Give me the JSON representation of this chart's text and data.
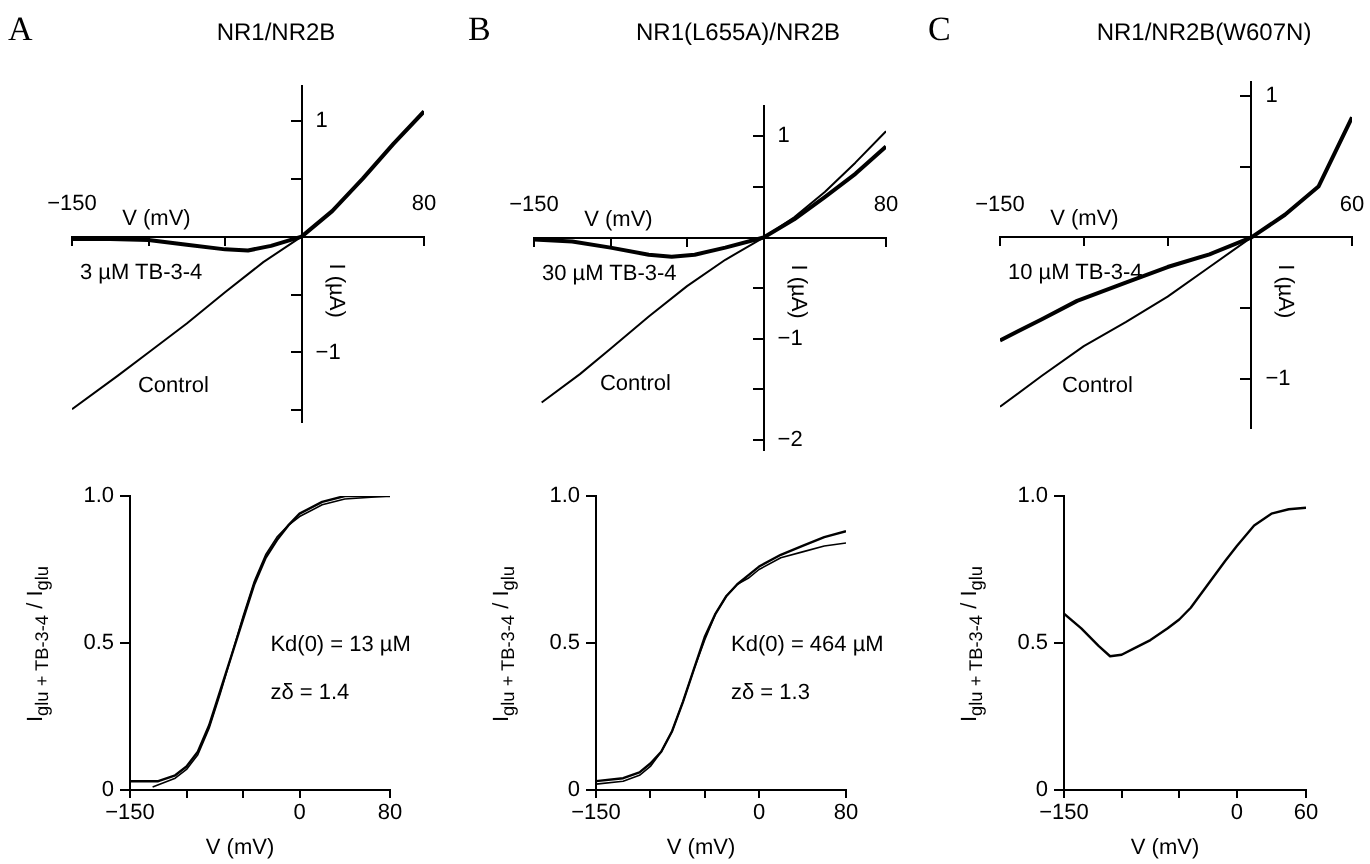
{
  "chart_data": [
    {
      "type": "line",
      "title": "NR1/NR2B",
      "annotations": [
        "A"
      ],
      "xlabel": "V (mV)",
      "ylabel": "I (µA)",
      "xlim": [
        -150,
        80
      ],
      "xticks": [
        {
          "value": -150,
          "label": "−150"
        },
        {
          "value": -100,
          "label": null
        },
        {
          "value": -50,
          "label": null
        },
        80
      ],
      "ylim": [
        -1.6,
        1.3
      ],
      "yticks": [
        {
          "value": -1.5,
          "label": null
        },
        {
          "value": -1,
          "label": "−1"
        },
        {
          "value": -0.5,
          "label": null
        },
        {
          "value": 0.5,
          "label": null
        },
        1
      ],
      "series": [
        {
          "name": "Control",
          "color": "#000000",
          "x": [
            -150,
            -120,
            -100,
            -75,
            -50,
            -25,
            0,
            20,
            40,
            60,
            80
          ],
          "values": [
            -1.49,
            -1.2,
            -1.0,
            -0.75,
            -0.48,
            -0.22,
            0,
            0.22,
            0.5,
            0.8,
            1.08
          ]
        },
        {
          "name": "3 µM TB-3-4",
          "color": "#000000",
          "x": [
            -150,
            -125,
            -100,
            -75,
            -50,
            -35,
            -20,
            0,
            20,
            40,
            60,
            80
          ],
          "values": [
            -0.02,
            -0.02,
            -0.03,
            -0.07,
            -0.11,
            -0.12,
            -0.08,
            0,
            0.22,
            0.5,
            0.8,
            1.08
          ]
        }
      ]
    },
    {
      "type": "line",
      "title": "NR1(L655A)/NR2B",
      "annotations": [
        "B"
      ],
      "xlabel": "V (mV)",
      "ylabel": "I (µA)",
      "xlim": [
        -150,
        80
      ],
      "xticks": [
        {
          "value": -150,
          "label": "−150"
        },
        {
          "value": -100,
          "label": null
        },
        {
          "value": -50,
          "label": null
        },
        80
      ],
      "ylim": [
        -2.1,
        1.3
      ],
      "yticks": [
        {
          "value": -2,
          "label": "−2"
        },
        {
          "value": -1.5,
          "label": null
        },
        {
          "value": -1,
          "label": "−1"
        },
        {
          "value": -0.5,
          "label": null
        },
        {
          "value": 0.5,
          "label": null
        },
        1
      ],
      "series": [
        {
          "name": "Control",
          "color": "#000000",
          "x": [
            -145,
            -120,
            -100,
            -75,
            -50,
            -25,
            0,
            20,
            40,
            60,
            80
          ],
          "values": [
            -1.63,
            -1.35,
            -1.1,
            -0.78,
            -0.48,
            -0.22,
            0,
            0.2,
            0.45,
            0.74,
            1.05
          ]
        },
        {
          "name": "30 µM TB-3-4",
          "color": "#000000",
          "x": [
            -150,
            -125,
            -100,
            -75,
            -60,
            -45,
            -25,
            0,
            20,
            40,
            60,
            80
          ],
          "values": [
            -0.02,
            -0.04,
            -0.1,
            -0.17,
            -0.19,
            -0.17,
            -0.1,
            0,
            0.18,
            0.4,
            0.63,
            0.9
          ]
        }
      ]
    },
    {
      "type": "line",
      "title": "NR1/NR2B(W607N)",
      "annotations": [
        "C"
      ],
      "xlabel": "V (mV)",
      "ylabel": "I (µA)",
      "xlim": [
        -150,
        60
      ],
      "xticks": [
        {
          "value": -150,
          "label": "−150"
        },
        {
          "value": -100,
          "label": null
        },
        {
          "value": -50,
          "label": null
        },
        60
      ],
      "ylim": [
        -1.35,
        1.1
      ],
      "yticks": [
        {
          "value": -1,
          "label": "−1"
        },
        {
          "value": -0.5,
          "label": null
        },
        {
          "value": 0.5,
          "label": null
        },
        1
      ],
      "series": [
        {
          "name": "Control",
          "color": "#000000",
          "x": [
            -150,
            -125,
            -100,
            -75,
            -50,
            -25,
            0,
            20,
            40,
            60
          ],
          "values": [
            -1.2,
            -0.98,
            -0.77,
            -0.6,
            -0.42,
            -0.21,
            0,
            0.16,
            0.36,
            0.85
          ]
        },
        {
          "name": "10 µM TB-3-4",
          "color": "#000000",
          "x": [
            -150,
            -125,
            -104,
            -75,
            -50,
            -25,
            0,
            20,
            40,
            60
          ],
          "values": [
            -0.73,
            -0.58,
            -0.45,
            -0.32,
            -0.21,
            -0.12,
            0,
            0.16,
            0.36,
            0.85
          ]
        }
      ]
    },
    {
      "type": "line",
      "xlabel": "V (mV)",
      "ylabel": "I$_{glu + TB-3-4}$ / I$_{glu}$",
      "annotations": [
        "Kd(0) = 13 µM",
        "zδ = 1.4"
      ],
      "xlim": [
        -150,
        80
      ],
      "xticks": [
        {
          "value": -150,
          "label": "−150"
        },
        {
          "value": -100,
          "label": null
        },
        {
          "value": -50,
          "label": null
        },
        0,
        80
      ],
      "ylim": [
        0,
        1
      ],
      "yticks": [
        0,
        0.5,
        {
          "value": 1,
          "label": "1.0"
        }
      ],
      "series": [
        {
          "color": "#000000",
          "x": [
            -150,
            -125,
            -110,
            -100,
            -90,
            -80,
            -70,
            -60,
            -50,
            -40,
            -30,
            -20,
            -10,
            0,
            20,
            40,
            80
          ],
          "values": [
            0.03,
            0.03,
            0.05,
            0.08,
            0.13,
            0.22,
            0.34,
            0.46,
            0.58,
            0.7,
            0.79,
            0.85,
            0.9,
            0.94,
            0.98,
            1.0,
            1.0
          ]
        },
        {
          "color": "#000000",
          "x": [
            -130,
            -110,
            -100,
            -90,
            -80,
            -70,
            -60,
            -50,
            -40,
            -30,
            -20,
            -10,
            0,
            20,
            40,
            80
          ],
          "values": [
            0.01,
            0.04,
            0.07,
            0.12,
            0.21,
            0.33,
            0.46,
            0.59,
            0.71,
            0.8,
            0.86,
            0.9,
            0.93,
            0.97,
            0.99,
            1.0
          ]
        }
      ]
    },
    {
      "type": "line",
      "xlabel": "V (mV)",
      "ylabel": "I$_{glu + TB-3-4}$ / I$_{glu}$",
      "annotations": [
        "Kd(0) = 464 µM",
        "zδ = 1.3"
      ],
      "xlim": [
        -150,
        80
      ],
      "xticks": [
        {
          "value": -150,
          "label": "−150"
        },
        {
          "value": -100,
          "label": null
        },
        {
          "value": -50,
          "label": null
        },
        0,
        80
      ],
      "ylim": [
        0,
        1
      ],
      "yticks": [
        0,
        0.5,
        {
          "value": 1,
          "label": "1.0"
        }
      ],
      "series": [
        {
          "color": "#000000",
          "x": [
            -150,
            -125,
            -110,
            -100,
            -90,
            -80,
            -70,
            -60,
            -50,
            -40,
            -30,
            -20,
            -10,
            0,
            20,
            40,
            60,
            80
          ],
          "values": [
            0.03,
            0.04,
            0.06,
            0.09,
            0.13,
            0.2,
            0.3,
            0.41,
            0.52,
            0.6,
            0.66,
            0.7,
            0.73,
            0.76,
            0.8,
            0.83,
            0.86,
            0.88
          ]
        },
        {
          "color": "#000000",
          "x": [
            -150,
            -125,
            -110,
            -100,
            -90,
            -80,
            -70,
            -60,
            -50,
            -40,
            -30,
            -20,
            -10,
            0,
            20,
            40,
            60,
            80
          ],
          "values": [
            0.02,
            0.03,
            0.05,
            0.08,
            0.13,
            0.2,
            0.3,
            0.41,
            0.51,
            0.6,
            0.66,
            0.7,
            0.72,
            0.75,
            0.79,
            0.81,
            0.83,
            0.84
          ]
        }
      ]
    },
    {
      "type": "line",
      "xlabel": "V (mV)",
      "ylabel": "I$_{glu + TB-3-4}$ / I$_{glu}$",
      "xlim": [
        -150,
        60
      ],
      "xticks": [
        {
          "value": -150,
          "label": "−150"
        },
        {
          "value": -100,
          "label": null
        },
        {
          "value": -50,
          "label": null
        },
        0,
        60
      ],
      "ylim": [
        0,
        1
      ],
      "yticks": [
        0,
        0.5,
        {
          "value": 1,
          "label": "1.0"
        }
      ],
      "series": [
        {
          "color": "#000000",
          "x": [
            -150,
            -135,
            -120,
            -110,
            -100,
            -90,
            -75,
            -60,
            -50,
            -40,
            -25,
            -10,
            0,
            15,
            30,
            45,
            60
          ],
          "values": [
            0.6,
            0.55,
            0.49,
            0.455,
            0.46,
            0.48,
            0.51,
            0.55,
            0.58,
            0.62,
            0.7,
            0.78,
            0.83,
            0.9,
            0.94,
            0.955,
            0.96
          ]
        }
      ]
    }
  ]
}
